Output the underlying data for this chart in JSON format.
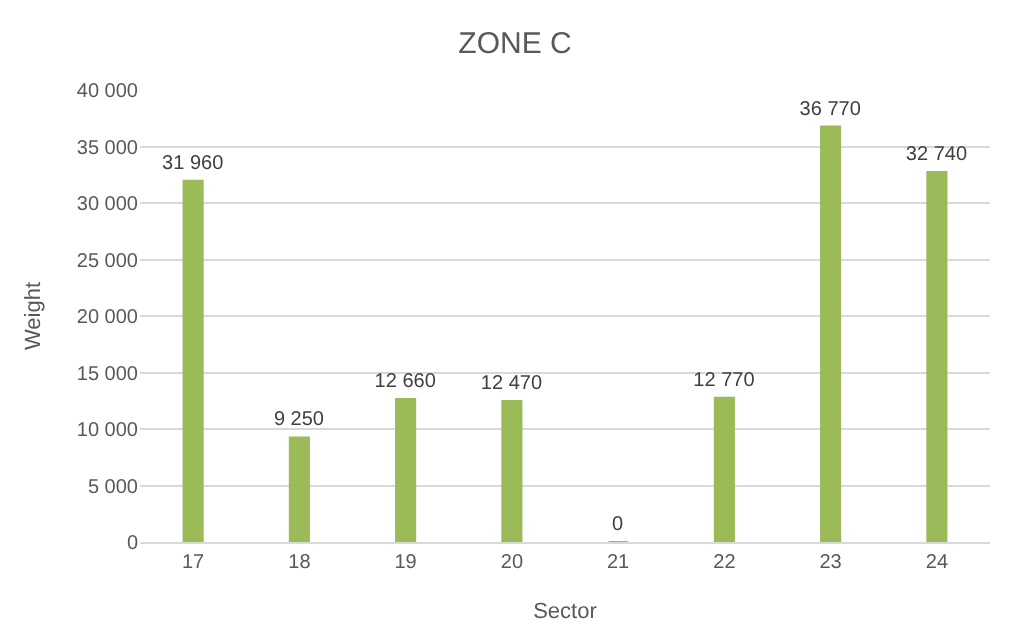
{
  "chart_data": {
    "type": "bar",
    "title": "ZONE C",
    "xlabel": "Sector",
    "ylabel": "Weight",
    "categories": [
      "17",
      "18",
      "19",
      "20",
      "21",
      "22",
      "23",
      "24"
    ],
    "values": [
      31960,
      9250,
      12660,
      12470,
      0,
      12770,
      36770,
      32740
    ],
    "value_labels": [
      "31 960",
      "9 250",
      "12 660",
      "12 470",
      "0",
      "12 770",
      "36 770",
      "32 740"
    ],
    "color": "#9bbb59",
    "ylim": [
      0,
      40000
    ],
    "yticks": [
      {
        "value": 0,
        "label": "0"
      },
      {
        "value": 5000,
        "label": "5 000"
      },
      {
        "value": 10000,
        "label": "10 000"
      },
      {
        "value": 15000,
        "label": "15 000"
      },
      {
        "value": 20000,
        "label": "20 000"
      },
      {
        "value": 25000,
        "label": "25 000"
      },
      {
        "value": 30000,
        "label": "30 000"
      },
      {
        "value": 35000,
        "label": "35 000"
      },
      {
        "value": 40000,
        "label": "40 000"
      }
    ],
    "grid": "y"
  }
}
